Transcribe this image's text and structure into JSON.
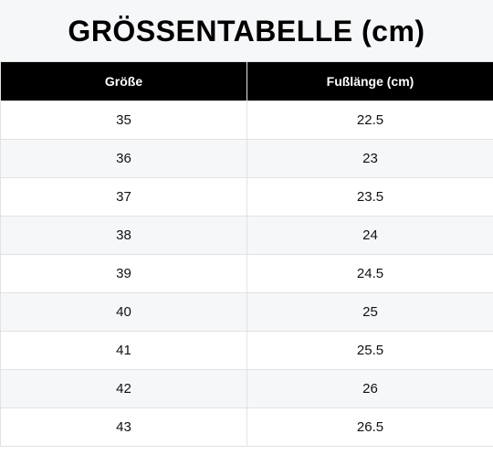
{
  "title": "GRÖSSENTABELLE (cm)",
  "table": {
    "headers": [
      "Größe",
      "Fußlänge (cm)"
    ],
    "rows": [
      [
        "35",
        "22.5"
      ],
      [
        "36",
        "23"
      ],
      [
        "37",
        "23.5"
      ],
      [
        "38",
        "24"
      ],
      [
        "39",
        "24.5"
      ],
      [
        "40",
        "25"
      ],
      [
        "41",
        "25.5"
      ],
      [
        "42",
        "26"
      ],
      [
        "43",
        "26.5"
      ]
    ]
  },
  "colors": {
    "header_bg": "#000000",
    "header_text": "#ffffff",
    "title_bg": "#f6f7f9",
    "row_alt_bg": "#f6f7f9",
    "border": "#e2e2e2"
  }
}
